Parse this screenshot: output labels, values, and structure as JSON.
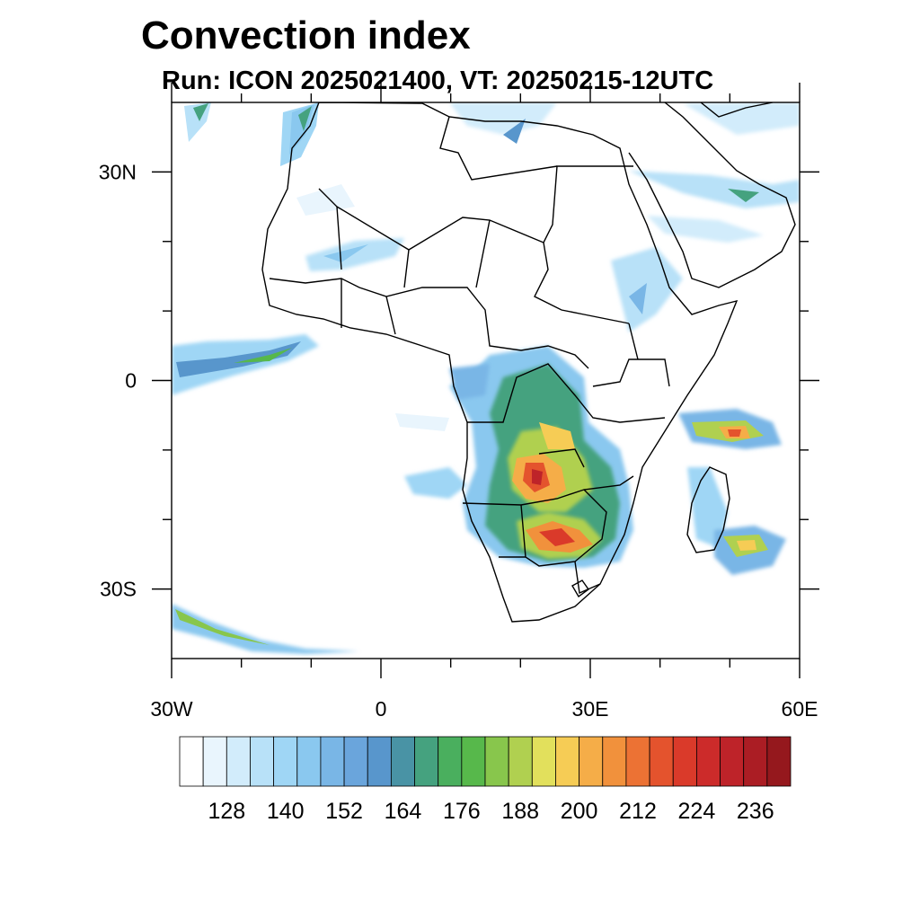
{
  "title": "Convection index",
  "subtitle": "Run: ICON 2025021400,  VT: 20250215-12UTC",
  "map": {
    "lon_range": [
      -30,
      60
    ],
    "lat_range": [
      -40,
      40
    ],
    "lon_ticks": [
      {
        "value": -30,
        "label": "30W"
      },
      {
        "value": 0,
        "label": "0"
      },
      {
        "value": 30,
        "label": "30E"
      },
      {
        "value": 60,
        "label": "60E"
      }
    ],
    "lat_ticks": [
      {
        "value": 30,
        "label": "30N"
      },
      {
        "value": 0,
        "label": "0"
      },
      {
        "value": -30,
        "label": "30S"
      }
    ],
    "minor_lon_ticks": [
      -20,
      -10,
      10,
      20,
      40,
      50
    ],
    "minor_lat_ticks": [
      -20,
      -10,
      10,
      20
    ]
  },
  "colorbar": {
    "colors": [
      "#ffffff",
      "#e9f5fd",
      "#d2ecfb",
      "#b8e1f8",
      "#9fd6f5",
      "#8ac8ef",
      "#79b6e6",
      "#6aa5dc",
      "#5896cc",
      "#4993a5",
      "#45a27f",
      "#4aaf5e",
      "#57b84b",
      "#88c64c",
      "#b0d050",
      "#e2e05c",
      "#f6cc55",
      "#f5ad48",
      "#f1913c",
      "#ec7234",
      "#e4532d",
      "#da3a2a",
      "#cc2b2a",
      "#be2329",
      "#ab1d24",
      "#95181d"
    ],
    "labels": [
      "128",
      "140",
      "152",
      "164",
      "176",
      "188",
      "200",
      "212",
      "224",
      "236"
    ]
  }
}
